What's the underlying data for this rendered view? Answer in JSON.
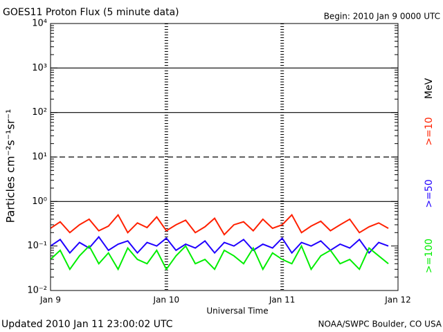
{
  "chart_data": {
    "type": "line",
    "title": "GOES11 Proton Flux (5 minute data)",
    "subtitle": "Begin: 2010 Jan 9 0000 UTC",
    "ylabel": "Particles cm⁻²s⁻¹sr⁻¹",
    "xlabel": "Universal Time",
    "footer_left": "Updated 2010 Jan 11 23:00:02 UTC",
    "footer_right": "NOAA/SWPC Boulder, CO USA",
    "legend_title": "MeV",
    "log_y": true,
    "xlim": [
      0,
      72
    ],
    "xticks": [
      {
        "value": 0,
        "label": "Jan 9"
      },
      {
        "value": 24,
        "label": "Jan 10"
      },
      {
        "value": 48,
        "label": "Jan 11"
      },
      {
        "value": 72,
        "label": "Jan 12"
      }
    ],
    "ylim": [
      0.01,
      10000
    ],
    "yticks": [
      {
        "value": 0.01,
        "label": "10⁻²"
      },
      {
        "value": 0.1,
        "label": "10⁻¹"
      },
      {
        "value": 1,
        "label": "10⁰"
      },
      {
        "value": 10,
        "label": "10¹"
      },
      {
        "value": 100,
        "label": "10²"
      },
      {
        "value": 1000,
        "label": "10³"
      },
      {
        "value": 10000,
        "label": "10⁴"
      }
    ],
    "hlines": [
      {
        "value": 1000,
        "dashed": false
      },
      {
        "value": 100,
        "dashed": false
      },
      {
        "value": 10,
        "dashed": true
      },
      {
        "value": 1,
        "dashed": false
      }
    ],
    "x": [
      0,
      2,
      4,
      6,
      8,
      10,
      12,
      14,
      16,
      18,
      20,
      22,
      24,
      26,
      28,
      30,
      32,
      34,
      36,
      38,
      40,
      42,
      44,
      46,
      48,
      50,
      52,
      54,
      56,
      58,
      60,
      62,
      64,
      66,
      68,
      70
    ],
    "series": [
      {
        "name": ">=10",
        "color": "#ff2000",
        "values": [
          0.25,
          0.35,
          0.2,
          0.3,
          0.4,
          0.22,
          0.28,
          0.5,
          0.2,
          0.33,
          0.26,
          0.45,
          0.22,
          0.3,
          0.38,
          0.2,
          0.27,
          0.42,
          0.18,
          0.3,
          0.35,
          0.22,
          0.4,
          0.25,
          0.3,
          0.5,
          0.2,
          0.28,
          0.36,
          0.22,
          0.3,
          0.4,
          0.2,
          0.27,
          0.33,
          0.25
        ]
      },
      {
        "name": ">=50",
        "color": "#2000ff",
        "values": [
          0.1,
          0.14,
          0.07,
          0.12,
          0.09,
          0.16,
          0.08,
          0.11,
          0.13,
          0.07,
          0.12,
          0.1,
          0.15,
          0.08,
          0.11,
          0.09,
          0.13,
          0.07,
          0.12,
          0.1,
          0.14,
          0.08,
          0.11,
          0.09,
          0.15,
          0.07,
          0.12,
          0.1,
          0.13,
          0.08,
          0.11,
          0.09,
          0.14,
          0.07,
          0.12,
          0.1
        ]
      },
      {
        "name": ">=100",
        "color": "#00ee00",
        "values": [
          0.05,
          0.08,
          0.03,
          0.06,
          0.1,
          0.04,
          0.07,
          0.03,
          0.09,
          0.05,
          0.04,
          0.08,
          0.03,
          0.06,
          0.1,
          0.04,
          0.05,
          0.03,
          0.08,
          0.06,
          0.04,
          0.09,
          0.03,
          0.07,
          0.05,
          0.04,
          0.1,
          0.03,
          0.06,
          0.08,
          0.04,
          0.05,
          0.03,
          0.09,
          0.06,
          0.04
        ]
      }
    ]
  }
}
